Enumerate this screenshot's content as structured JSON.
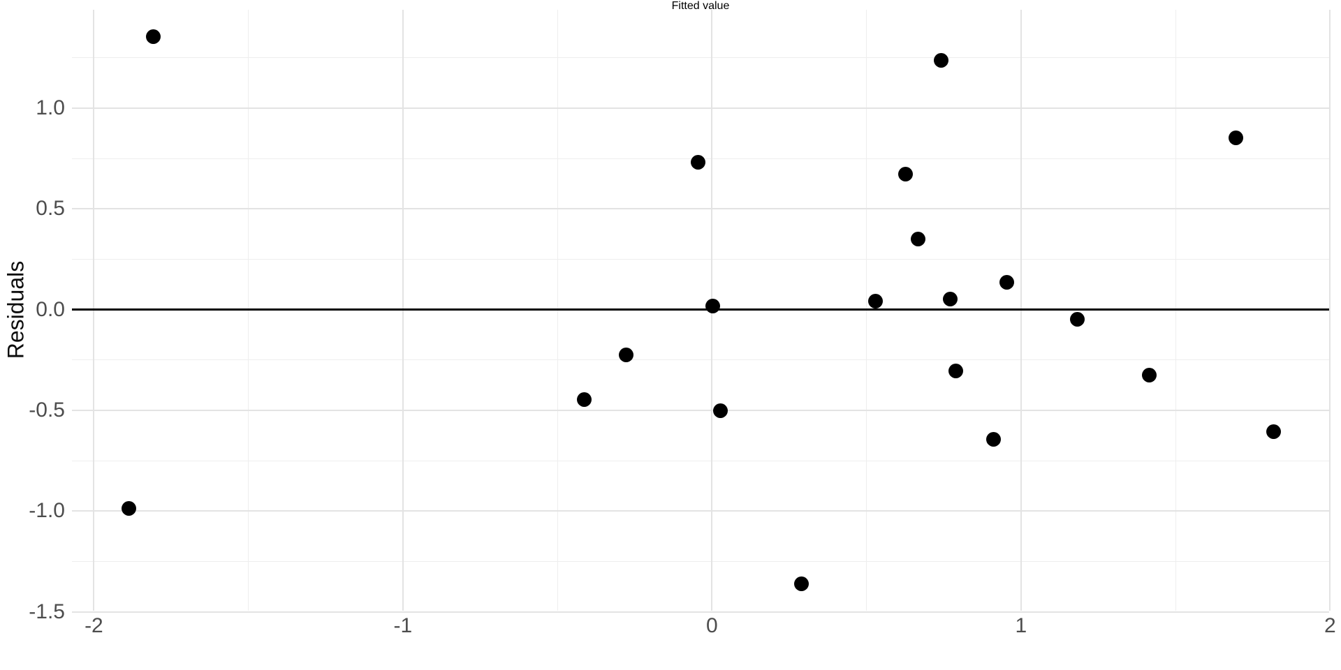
{
  "chart_data": {
    "type": "scatter",
    "title": "",
    "xlabel": "Fitted value",
    "ylabel": "Residuals",
    "legend_position": "none",
    "grid": true,
    "xlim": [
      -2.071,
      1.997
    ],
    "ylim": [
      -1.494,
      1.488
    ],
    "x_major_gridlines": [
      -2,
      -1,
      0,
      1,
      2
    ],
    "x_minor_gridlines": [
      -1.5,
      -0.5,
      0.5,
      1.5
    ],
    "y_major_gridlines": [
      -1.5,
      -1.0,
      -0.5,
      0.0,
      0.5,
      1.0
    ],
    "y_minor_gridlines": [
      -1.25,
      -0.75,
      -0.25,
      0.25,
      0.75,
      1.25
    ],
    "x_ticks": [
      {
        "value": -2,
        "label": "-2"
      },
      {
        "value": -1,
        "label": "-1"
      },
      {
        "value": 0,
        "label": "0"
      },
      {
        "value": 1,
        "label": "1"
      },
      {
        "value": 2,
        "label": "2"
      }
    ],
    "y_ticks": [
      {
        "value": 1.0,
        "label": "1.0"
      },
      {
        "value": 0.5,
        "label": "0.5"
      },
      {
        "value": 0.0,
        "label": "0.0"
      },
      {
        "value": -0.5,
        "label": "-0.5"
      },
      {
        "value": -1.0,
        "label": "-1.0"
      },
      {
        "value": -1.5,
        "label": "-1.5"
      }
    ],
    "reference_line_y": 0,
    "points": [
      [
        -1.807,
        1.353
      ],
      [
        -1.886,
        -0.986
      ],
      [
        -0.046,
        0.732
      ],
      [
        0.002,
        0.018
      ],
      [
        0.741,
        1.236
      ],
      [
        0.626,
        0.674
      ],
      [
        0.668,
        0.35
      ],
      [
        0.528,
        0.041
      ],
      [
        0.77,
        0.051
      ],
      [
        0.953,
        0.136
      ],
      [
        1.182,
        -0.049
      ],
      [
        -0.277,
        -0.225
      ],
      [
        -0.414,
        -0.448
      ],
      [
        0.028,
        -0.501
      ],
      [
        0.79,
        -0.303
      ],
      [
        1.414,
        -0.326
      ],
      [
        0.91,
        -0.643
      ],
      [
        1.696,
        0.853
      ],
      [
        1.817,
        -0.606
      ],
      [
        0.289,
        -1.362
      ]
    ],
    "colors": {
      "point": "#000000",
      "reference_line": "#000000",
      "grid_major": "#e3e3e3",
      "grid_minor": "#eeeeee",
      "tick_label": "#4d4d4d",
      "axis_title": "#0d0d0d",
      "background": "#ffffff"
    }
  }
}
